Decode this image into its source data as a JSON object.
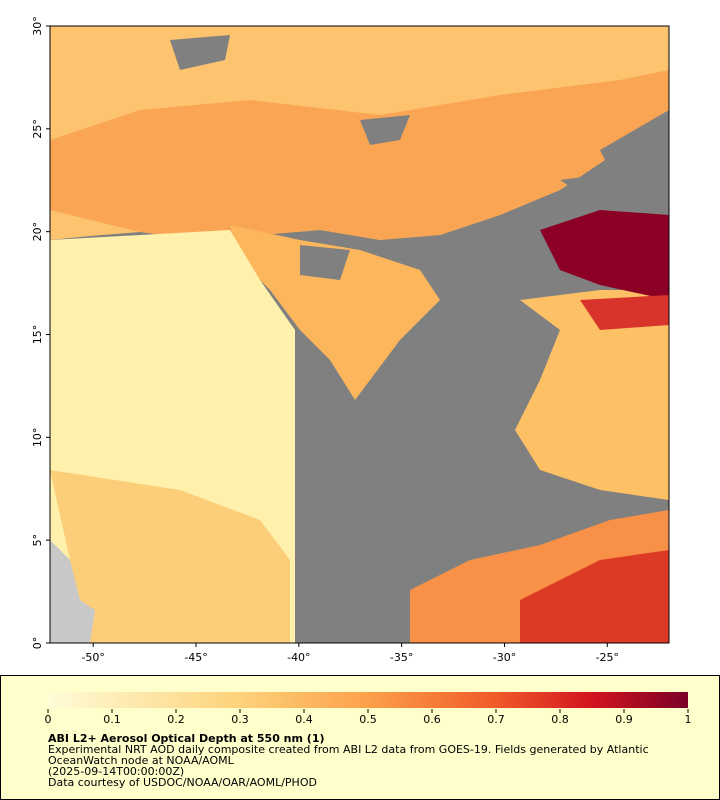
{
  "chart_data": {
    "type": "map",
    "xlim": [
      -52.1,
      -22.0
    ],
    "ylim": [
      0,
      30
    ],
    "xticks": [
      {
        "value": -50,
        "label": "-50°"
      },
      {
        "value": -45,
        "label": "-45°"
      },
      {
        "value": -40,
        "label": "-40°"
      },
      {
        "value": -35,
        "label": "-35°"
      },
      {
        "value": -30,
        "label": "-30°"
      },
      {
        "value": -25,
        "label": "-25°"
      }
    ],
    "yticks": [
      {
        "value": 0,
        "label": "0°"
      },
      {
        "value": 5,
        "label": "5°"
      },
      {
        "value": 10,
        "label": "10°"
      },
      {
        "value": 15,
        "label": "15°"
      },
      {
        "value": 20,
        "label": "20°"
      },
      {
        "value": 25,
        "label": "25°"
      },
      {
        "value": 30,
        "label": "30°"
      }
    ],
    "colorbar": {
      "lim": [
        0,
        1
      ],
      "ticks": [
        0,
        0.1,
        0.2,
        0.3,
        0.4,
        0.5,
        0.6,
        0.7,
        0.8,
        0.9,
        1
      ]
    },
    "title": "ABI L2+ Aerosol Optical Depth at 550 nm (1)",
    "description": [
      "Experimental NRT AOD daily composite created from ABI L2 data from GOES-19. Fields generated by Atlantic",
      "OceanWatch node at NOAA/AOML"
    ],
    "time": "(2025-09-14T00:00:00Z)",
    "credit": "Data courtesy of USDOC/NOAA/OAR/AOML/PHOD"
  }
}
